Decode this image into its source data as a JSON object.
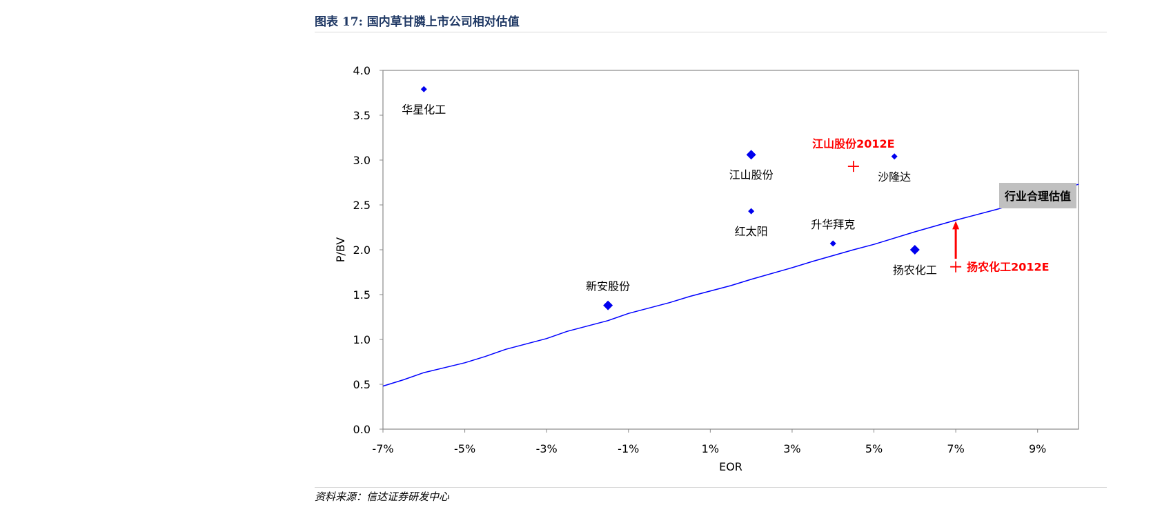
{
  "figure": {
    "number": "图表 17:",
    "title": "国内草甘膦上市公司相对估值",
    "source": "资料来源：信达证券研发中心"
  },
  "chart_data": {
    "type": "scatter",
    "xlabel": "EOR",
    "ylabel": "P/BV",
    "xlim": [
      -7,
      10
    ],
    "ylim": [
      0,
      4.0
    ],
    "xticks": [
      -7,
      -5,
      -3,
      -1,
      1,
      3,
      5,
      7,
      9
    ],
    "xtick_labels": [
      "-7%",
      "-5%",
      "-3%",
      "-1%",
      "1%",
      "3%",
      "5%",
      "7%",
      "9%"
    ],
    "yticks": [
      0,
      0.5,
      1.0,
      1.5,
      2.0,
      2.5,
      3.0,
      3.5,
      4.0
    ],
    "ytick_labels": [
      "0.0",
      "0.5",
      "1.0",
      "1.5",
      "2.0",
      "2.5",
      "3.0",
      "3.5",
      "4.0"
    ],
    "grid": false,
    "points": [
      {
        "label": "华星化工",
        "x": -6.0,
        "y": 3.79,
        "size": "small",
        "label_pos": "below"
      },
      {
        "label": "江山股份",
        "x": 2.0,
        "y": 3.06,
        "size": "large",
        "label_pos": "below"
      },
      {
        "label": "沙隆达",
        "x": 5.5,
        "y": 3.04,
        "size": "small",
        "label_pos": "below"
      },
      {
        "label": "红太阳",
        "x": 2.0,
        "y": 2.43,
        "size": "small",
        "label_pos": "below"
      },
      {
        "label": "升华拜克",
        "x": 4.0,
        "y": 2.07,
        "size": "small",
        "label_pos": "above"
      },
      {
        "label": "扬农化工",
        "x": 6.0,
        "y": 2.0,
        "size": "large",
        "label_pos": "below"
      },
      {
        "label": "新安股份",
        "x": -1.5,
        "y": 1.38,
        "size": "large",
        "label_pos": "above"
      }
    ],
    "forecast_points": [
      {
        "label": "江山股份2012E",
        "x": 4.5,
        "y": 2.93,
        "label_pos": "above",
        "color": "#ff0000"
      },
      {
        "label": "扬农化工2012E",
        "x": 7.0,
        "y": 1.81,
        "label_pos": "right",
        "color": "#ff0000"
      }
    ],
    "arrow": {
      "x": 7.0,
      "y_from": 1.9,
      "y_to": 2.32,
      "color": "#ff0000"
    },
    "valuation_line": {
      "name": "行业合理估值",
      "color": "#0000ff",
      "x": [
        -7,
        -6.5,
        -6,
        -5,
        -4.5,
        -4,
        -3,
        -2.5,
        -1.5,
        -1,
        0,
        0.5,
        1.5,
        2,
        3,
        3.5,
        4.5,
        5,
        6,
        7,
        8,
        9,
        10
      ],
      "y": [
        0.48,
        0.55,
        0.63,
        0.74,
        0.81,
        0.89,
        1.01,
        1.09,
        1.21,
        1.29,
        1.41,
        1.48,
        1.6,
        1.67,
        1.8,
        1.87,
        2.0,
        2.06,
        2.2,
        2.33,
        2.45,
        2.58,
        2.73
      ]
    },
    "colors": {
      "points": "#0000ee",
      "forecast": "#ff0000",
      "label_box": "#c0c0c0",
      "title": "#1f3864"
    }
  }
}
